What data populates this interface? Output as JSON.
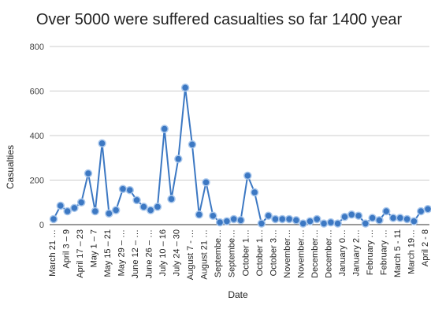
{
  "chart_data": {
    "type": "line",
    "title": "Over 5000 were suffered casualties so far 1400 year",
    "xlabel": "Date",
    "ylabel": "Casualties",
    "ylim": [
      0,
      800
    ],
    "yticks": [
      "0",
      "200",
      "400",
      "600",
      "800"
    ],
    "grid": true,
    "legend": "none",
    "color": "#3c78c3",
    "xtick_labels": [
      "March 21 …",
      "April 3 – 9",
      "April 17 – 23",
      "May 1 – 7",
      "May 15 – 21",
      "May 29 – …",
      "June 12 – …",
      "June 26 – …",
      "July 10 – 16",
      "July 24 – 30",
      "August 7 - …",
      "August 21 …",
      "Septembe…",
      "Septembe…",
      "October 1…",
      "October 1…",
      "October 3…",
      "November…",
      "November…",
      "December…",
      "December…",
      "January 0…",
      "January 2…",
      "February …",
      "February …",
      "March 5 - 11",
      "March 19…",
      "April 2 - 8"
    ],
    "values": [
      25,
      85,
      60,
      75,
      100,
      230,
      60,
      365,
      50,
      65,
      160,
      155,
      110,
      80,
      65,
      80,
      430,
      115,
      295,
      615,
      360,
      45,
      190,
      40,
      10,
      15,
      25,
      20,
      220,
      145,
      5,
      40,
      25,
      25,
      25,
      20,
      5,
      15,
      25,
      5,
      10,
      5,
      35,
      45,
      40,
      5,
      30,
      20,
      60,
      30,
      30,
      25,
      15,
      60,
      70
    ]
  }
}
